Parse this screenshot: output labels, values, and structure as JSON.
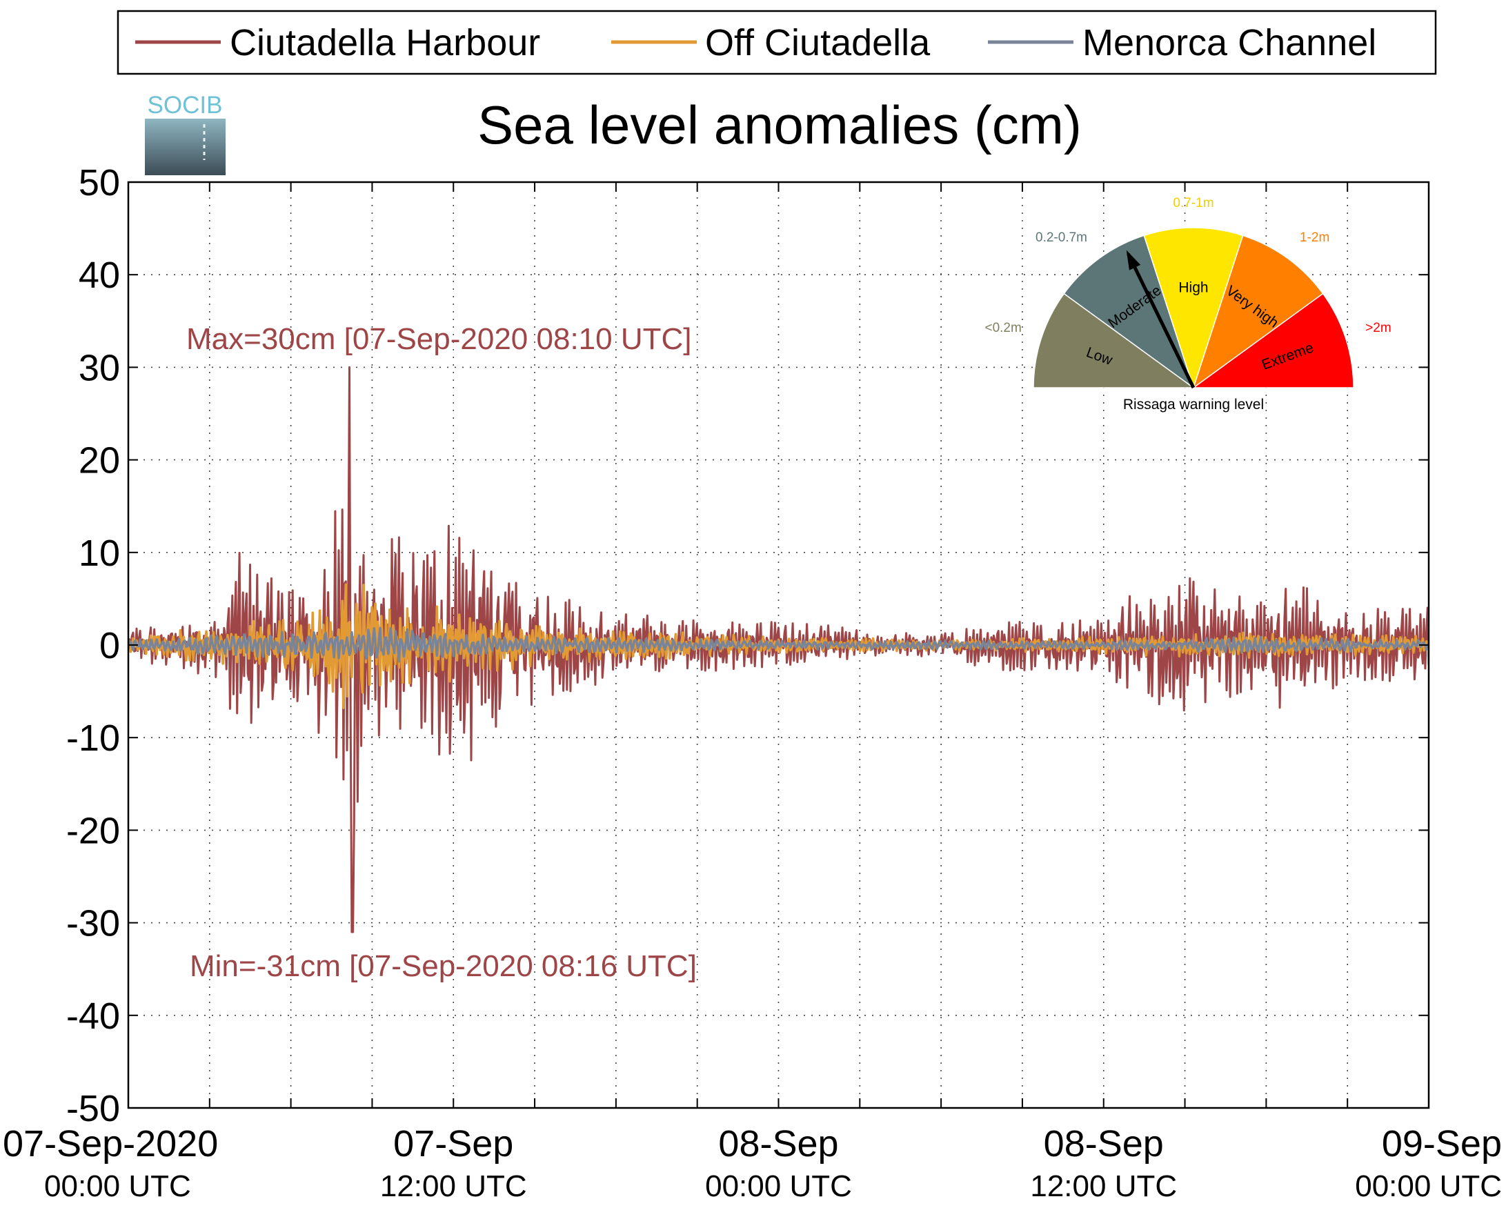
{
  "logo": {
    "text": "SOCIB"
  },
  "chart_data": {
    "type": "line",
    "title": "Sea level anomalies (cm)",
    "xlabel": "",
    "ylabel": "",
    "ylim": [
      -50,
      50
    ],
    "yticks": [
      50,
      40,
      30,
      20,
      10,
      0,
      -10,
      -20,
      -30,
      -40,
      -50
    ],
    "x_range": [
      "2020-09-07T00:00Z",
      "2020-09-09T00:00Z"
    ],
    "x_tick_labels": [
      {
        "at": "2020-09-07T00:00Z",
        "line1": "07-Sep-2020",
        "line2": "00:00 UTC"
      },
      {
        "at": "2020-09-07T12:00Z",
        "line1": "07-Sep",
        "line2": "12:00 UTC"
      },
      {
        "at": "2020-09-08T00:00Z",
        "line1": "08-Sep",
        "line2": "00:00 UTC"
      },
      {
        "at": "2020-09-08T12:00Z",
        "line1": "08-Sep",
        "line2": "12:00 UTC"
      },
      {
        "at": "2020-09-09T00:00Z",
        "line1": "09-Sep",
        "line2": "00:00 UTC"
      }
    ],
    "grid": true,
    "legend_position": "top",
    "series": [
      {
        "name": "Ciutadella Harbour",
        "color": "#9e4647",
        "envelope": [
          {
            "t": "2020-09-07T00:00Z",
            "amp": 2
          },
          {
            "t": "2020-09-07T02:00Z",
            "amp": 3
          },
          {
            "t": "2020-09-07T03:30Z",
            "amp": 4
          },
          {
            "t": "2020-09-07T04:00Z",
            "amp": 11
          },
          {
            "t": "2020-09-07T05:00Z",
            "amp": 9
          },
          {
            "t": "2020-09-07T06:00Z",
            "amp": 9
          },
          {
            "t": "2020-09-07T07:30Z",
            "amp": 13
          },
          {
            "t": "2020-09-07T08:10Z",
            "amp": 27
          },
          {
            "t": "2020-09-07T09:00Z",
            "amp": 10
          },
          {
            "t": "2020-09-07T10:00Z",
            "amp": 14
          },
          {
            "t": "2020-09-07T11:00Z",
            "amp": 12
          },
          {
            "t": "2020-09-07T12:00Z",
            "amp": 16
          },
          {
            "t": "2020-09-07T13:00Z",
            "amp": 13
          },
          {
            "t": "2020-09-07T15:00Z",
            "amp": 7
          },
          {
            "t": "2020-09-07T17:00Z",
            "amp": 5
          },
          {
            "t": "2020-09-07T20:00Z",
            "amp": 3
          },
          {
            "t": "2020-09-08T00:00Z",
            "amp": 3
          },
          {
            "t": "2020-09-08T04:00Z",
            "amp": 1.5
          },
          {
            "t": "2020-09-08T06:00Z",
            "amp": 1.5
          },
          {
            "t": "2020-09-08T08:00Z",
            "amp": 3
          },
          {
            "t": "2020-09-08T11:00Z",
            "amp": 3
          },
          {
            "t": "2020-09-08T13:00Z",
            "amp": 6
          },
          {
            "t": "2020-09-08T15:00Z",
            "amp": 8
          },
          {
            "t": "2020-09-08T17:00Z",
            "amp": 6
          },
          {
            "t": "2020-09-08T19:00Z",
            "amp": 8
          },
          {
            "t": "2020-09-08T21:00Z",
            "amp": 4
          },
          {
            "t": "2020-09-09T00:00Z",
            "amp": 5
          }
        ],
        "max": {
          "value": 30,
          "time": "2020-09-07T08:10Z"
        },
        "min": {
          "value": -31,
          "time": "2020-09-07T08:16Z"
        }
      },
      {
        "name": "Off Ciutadella",
        "color": "#e29a35",
        "envelope": [
          {
            "t": "2020-09-07T00:00Z",
            "amp": 1
          },
          {
            "t": "2020-09-07T04:00Z",
            "amp": 2.5
          },
          {
            "t": "2020-09-07T07:00Z",
            "amp": 4
          },
          {
            "t": "2020-09-07T08:10Z",
            "amp": 8
          },
          {
            "t": "2020-09-07T10:00Z",
            "amp": 5
          },
          {
            "t": "2020-09-07T13:00Z",
            "amp": 3.5
          },
          {
            "t": "2020-09-07T16:00Z",
            "amp": 2
          },
          {
            "t": "2020-09-08T00:00Z",
            "amp": 1
          },
          {
            "t": "2020-09-08T06:00Z",
            "amp": 0.6
          },
          {
            "t": "2020-09-08T12:00Z",
            "amp": 1
          },
          {
            "t": "2020-09-08T18:00Z",
            "amp": 1.5
          },
          {
            "t": "2020-09-09T00:00Z",
            "amp": 1
          }
        ]
      },
      {
        "name": "Menorca Channel",
        "color": "#7a8499",
        "envelope": [
          {
            "t": "2020-09-07T00:00Z",
            "amp": 0.6
          },
          {
            "t": "2020-09-07T06:00Z",
            "amp": 1.5
          },
          {
            "t": "2020-09-07T09:00Z",
            "amp": 2
          },
          {
            "t": "2020-09-07T14:00Z",
            "amp": 1
          },
          {
            "t": "2020-09-08T00:00Z",
            "amp": 0.5
          },
          {
            "t": "2020-09-08T12:00Z",
            "amp": 0.5
          },
          {
            "t": "2020-09-08T18:00Z",
            "amp": 1
          },
          {
            "t": "2020-09-09T00:00Z",
            "amp": 0.5
          }
        ]
      }
    ],
    "annotations": {
      "max_text": "Max=30cm [07-Sep-2020 08:10 UTC]",
      "min_text": "Min=-31cm [07-Sep-2020 08:16 UTC]",
      "color": "#9e4647"
    }
  },
  "gauge": {
    "title": "Rissaga warning level",
    "needle_level": "Moderate",
    "levels": [
      {
        "name": "Low",
        "range": "<0.2m",
        "color": "#7f7f60",
        "range_color": "#7f7f60"
      },
      {
        "name": "Moderate",
        "range": "0.2-0.7m",
        "color": "#5c7677",
        "range_color": "#5c7677"
      },
      {
        "name": "High",
        "range": "0.7-1m",
        "color": "#ffe600",
        "range_color": "#f2cf00"
      },
      {
        "name": "Very high",
        "range": "1-2m",
        "color": "#ff7f00",
        "range_color": "#ff7f00"
      },
      {
        "name": "Extreme",
        "range": ">2m",
        "color": "#ff0000",
        "range_color": "#ff0000"
      }
    ]
  }
}
